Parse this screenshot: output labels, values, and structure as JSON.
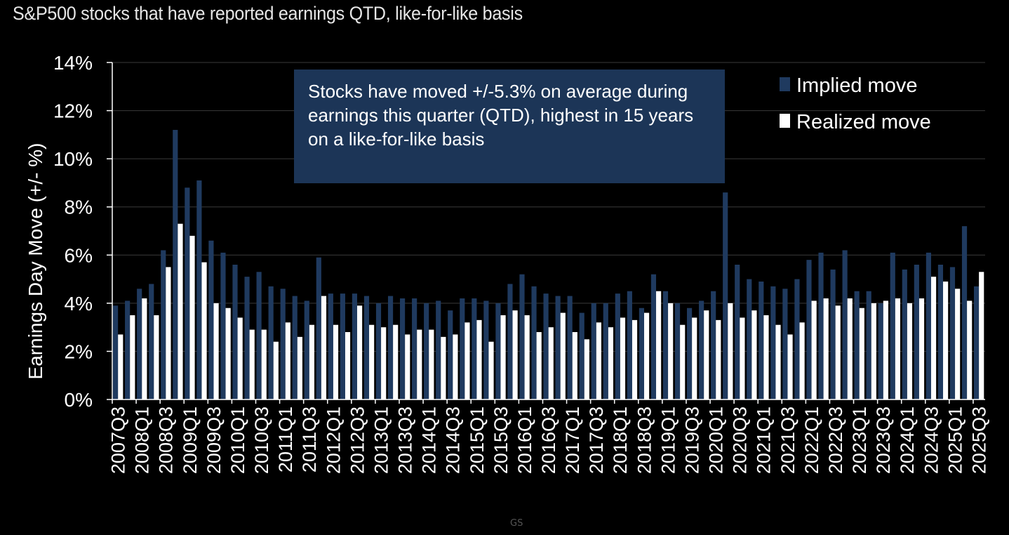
{
  "subtitle": "S&P500 stocks that have reported earnings QTD, like-for-like basis",
  "annotation": "Stocks have moved +/-5.3% on average during earnings this quarter (QTD), highest in 15 years on a like-for-like basis",
  "watermark": "GS",
  "colors": {
    "implied": "#1f3a5f",
    "realized": "#ffffff",
    "background": "#000000",
    "grid": "#3a3a3a"
  },
  "chart_data": {
    "type": "bar",
    "ylabel": "Earnings Day Move (+/- %)",
    "ylim": [
      0,
      14
    ],
    "yticks": [
      "0%",
      "2%",
      "4%",
      "6%",
      "8%",
      "10%",
      "12%",
      "14%"
    ],
    "grid": true,
    "legend_position": "top-right",
    "tick_labels": [
      "2007Q3",
      "2008Q1",
      "2008Q3",
      "2009Q1",
      "2009Q3",
      "2010Q1",
      "2010Q3",
      "2011Q1",
      "2011Q3",
      "2012Q1",
      "2012Q3",
      "2013Q1",
      "2013Q3",
      "2014Q1",
      "2014Q3",
      "2015Q1",
      "2015Q3",
      "2016Q1",
      "2016Q3",
      "2017Q1",
      "2017Q3",
      "2018Q1",
      "2018Q3",
      "2019Q1",
      "2019Q3",
      "2020Q1",
      "2020Q3",
      "2021Q1",
      "2021Q3",
      "2022Q1",
      "2022Q3",
      "2023Q1",
      "2023Q3",
      "2024Q1",
      "2024Q3",
      "2025Q1",
      "2025Q3"
    ],
    "categories": [
      "2007Q3",
      "2007Q4",
      "2008Q1",
      "2008Q2",
      "2008Q3",
      "2008Q4",
      "2009Q1",
      "2009Q2",
      "2009Q3",
      "2009Q4",
      "2010Q1",
      "2010Q2",
      "2010Q3",
      "2010Q4",
      "2011Q1",
      "2011Q2",
      "2011Q3",
      "2011Q4",
      "2012Q1",
      "2012Q2",
      "2012Q3",
      "2012Q4",
      "2013Q1",
      "2013Q2",
      "2013Q3",
      "2013Q4",
      "2014Q1",
      "2014Q2",
      "2014Q3",
      "2014Q4",
      "2015Q1",
      "2015Q2",
      "2015Q3",
      "2015Q4",
      "2016Q1",
      "2016Q2",
      "2016Q3",
      "2016Q4",
      "2017Q1",
      "2017Q2",
      "2017Q3",
      "2017Q4",
      "2018Q1",
      "2018Q2",
      "2018Q3",
      "2018Q4",
      "2019Q1",
      "2019Q2",
      "2019Q3",
      "2019Q4",
      "2020Q1",
      "2020Q2",
      "2020Q3",
      "2020Q4",
      "2021Q1",
      "2021Q2",
      "2021Q3",
      "2021Q4",
      "2022Q1",
      "2022Q2",
      "2022Q3",
      "2022Q4",
      "2023Q1",
      "2023Q2",
      "2023Q3",
      "2023Q4",
      "2024Q1",
      "2024Q2",
      "2024Q3",
      "2024Q4",
      "2025Q1",
      "2025Q2",
      "2025Q3"
    ],
    "series": [
      {
        "name": "Implied move",
        "values": [
          3.9,
          4.1,
          4.6,
          4.8,
          6.2,
          11.2,
          8.8,
          9.1,
          6.6,
          6.1,
          5.6,
          5.1,
          5.3,
          4.7,
          4.6,
          4.3,
          4.1,
          5.9,
          4.4,
          4.4,
          4.4,
          4.3,
          4.0,
          4.3,
          4.2,
          4.2,
          4.0,
          4.1,
          3.7,
          4.2,
          4.2,
          4.1,
          4.0,
          4.8,
          5.2,
          4.7,
          4.4,
          4.3,
          4.3,
          3.6,
          4.0,
          4.0,
          4.4,
          4.5,
          3.8,
          5.2,
          4.5,
          4.0,
          3.8,
          4.1,
          4.5,
          8.6,
          5.6,
          5.0,
          4.9,
          4.7,
          4.6,
          5.0,
          5.8,
          6.1,
          5.4,
          6.2,
          4.5,
          4.5,
          4.0,
          6.1,
          5.4,
          5.6,
          6.1,
          5.6,
          5.5,
          7.2,
          4.7
        ]
      },
      {
        "name": "Realized move",
        "values": [
          2.7,
          3.5,
          4.2,
          3.5,
          5.5,
          7.3,
          6.8,
          5.7,
          4.0,
          3.8,
          3.4,
          2.9,
          2.9,
          2.4,
          3.2,
          2.6,
          3.1,
          4.3,
          3.1,
          2.8,
          3.9,
          3.1,
          3.0,
          3.1,
          2.7,
          2.9,
          2.9,
          2.6,
          2.7,
          3.2,
          3.3,
          2.4,
          3.5,
          3.7,
          3.5,
          2.8,
          3.0,
          3.6,
          2.8,
          2.5,
          3.2,
          3.0,
          3.4,
          3.3,
          3.6,
          4.5,
          4.0,
          3.1,
          3.4,
          3.7,
          3.3,
          4.0,
          3.4,
          3.7,
          3.5,
          3.1,
          2.7,
          3.2,
          4.1,
          4.2,
          3.9,
          4.2,
          3.8,
          4.0,
          4.1,
          4.2,
          4.0,
          4.2,
          5.1,
          4.9,
          4.6,
          4.1,
          5.3
        ]
      }
    ]
  }
}
